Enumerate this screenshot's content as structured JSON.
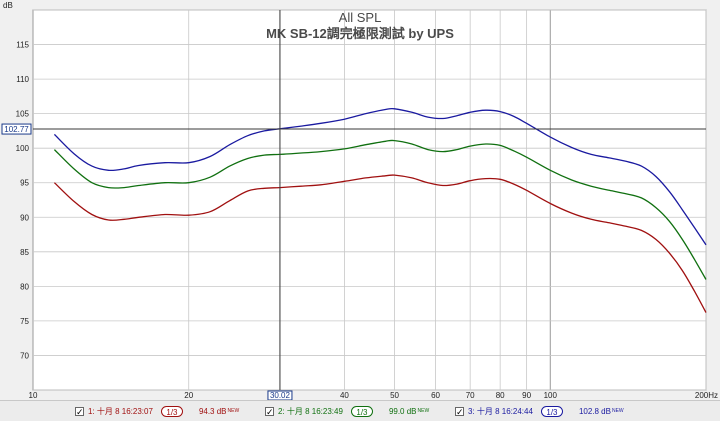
{
  "chart_data": {
    "type": "line",
    "title": "All SPL",
    "subtitle": "MK SB-12調完極限測試 by UPS",
    "ylabel": "dB",
    "xscale": "log",
    "xlim": [
      10,
      200
    ],
    "ylim": [
      65,
      120
    ],
    "grid": true,
    "yticks": [
      70,
      75,
      80,
      85,
      90,
      95,
      100,
      105,
      110,
      115
    ],
    "xticks": [
      {
        "value": 10,
        "label": "10"
      },
      {
        "value": 20,
        "label": "20"
      },
      {
        "value": 40,
        "label": "40"
      },
      {
        "value": 50,
        "label": "50"
      },
      {
        "value": 60,
        "label": "60"
      },
      {
        "value": 70,
        "label": "70"
      },
      {
        "value": 80,
        "label": "80"
      },
      {
        "value": 90,
        "label": "90"
      },
      {
        "value": 100,
        "label": "100"
      },
      {
        "value": 200,
        "label": "200Hz"
      }
    ],
    "cursor": {
      "x": 30.02,
      "x_label": "30.02",
      "y": 102.77,
      "y_label": "102.77"
    },
    "series": [
      {
        "name": "1: 十月 8 16:23:07",
        "color": "#a01010",
        "level": "94.3 dB",
        "x": [
          11,
          12,
          13,
          14,
          15,
          16,
          18,
          20,
          22,
          24,
          26,
          28,
          30,
          33,
          36,
          40,
          44,
          48,
          50,
          54,
          58,
          62,
          66,
          70,
          75,
          80,
          85,
          90,
          100,
          110,
          120,
          130,
          140,
          150,
          160,
          170,
          180,
          190,
          200
        ],
        "y": [
          95.0,
          92.3,
          90.4,
          89.6,
          89.7,
          90.0,
          90.4,
          90.3,
          90.8,
          92.4,
          93.8,
          94.2,
          94.3,
          94.5,
          94.7,
          95.2,
          95.7,
          96.0,
          96.1,
          95.7,
          95.0,
          94.6,
          94.8,
          95.3,
          95.6,
          95.5,
          94.8,
          93.9,
          92.0,
          90.6,
          89.7,
          89.2,
          88.7,
          88.1,
          86.8,
          84.8,
          82.3,
          79.3,
          76.2
        ]
      },
      {
        "name": "2: 十月 8 16:23:49",
        "color": "#107010",
        "level": "99.0 dB",
        "x": [
          11,
          12,
          13,
          14,
          15,
          16,
          18,
          20,
          22,
          24,
          26,
          28,
          30,
          33,
          36,
          40,
          44,
          48,
          50,
          54,
          58,
          62,
          66,
          70,
          75,
          80,
          85,
          90,
          100,
          110,
          120,
          130,
          140,
          150,
          160,
          170,
          180,
          190,
          200
        ],
        "y": [
          99.8,
          97.0,
          95.0,
          94.3,
          94.3,
          94.6,
          95.0,
          95.0,
          95.8,
          97.4,
          98.5,
          99.0,
          99.1,
          99.3,
          99.5,
          99.9,
          100.5,
          101.0,
          101.1,
          100.6,
          99.8,
          99.5,
          99.8,
          100.3,
          100.6,
          100.4,
          99.6,
          98.7,
          96.8,
          95.4,
          94.5,
          93.9,
          93.4,
          92.8,
          91.4,
          89.4,
          86.8,
          83.9,
          81.0
        ]
      },
      {
        "name": "3: 十月 8 16:24:44",
        "color": "#1a1aa0",
        "level": "102.8 dB",
        "x": [
          11,
          12,
          13,
          14,
          15,
          16,
          18,
          20,
          22,
          24,
          26,
          28,
          30,
          33,
          36,
          40,
          44,
          48,
          50,
          54,
          58,
          62,
          66,
          70,
          75,
          80,
          85,
          90,
          100,
          110,
          120,
          130,
          140,
          150,
          160,
          170,
          180,
          190,
          200
        ],
        "y": [
          102.0,
          99.2,
          97.4,
          96.8,
          97.0,
          97.5,
          97.9,
          97.9,
          98.8,
          100.5,
          101.8,
          102.5,
          102.8,
          103.2,
          103.6,
          104.2,
          105.0,
          105.6,
          105.7,
          105.2,
          104.5,
          104.3,
          104.7,
          105.2,
          105.5,
          105.3,
          104.6,
          103.6,
          101.6,
          100.1,
          99.1,
          98.6,
          98.1,
          97.4,
          95.9,
          93.7,
          91.1,
          88.5,
          86.0
        ]
      }
    ]
  },
  "legend": {
    "smooth_label": "1/3",
    "new_tag": "NEW",
    "checkmark": "✓"
  },
  "cursor_vline_label": "30.02",
  "cursor_hline_label": "102.77",
  "colors": {
    "background": "#f0f0f0",
    "plot_bg": "#ffffff",
    "grid": "#c8c8c8",
    "axis_text": "#222222",
    "title": "#4a4a4a",
    "cursor": "#404040",
    "cursor_label": "#1a3a8a"
  }
}
